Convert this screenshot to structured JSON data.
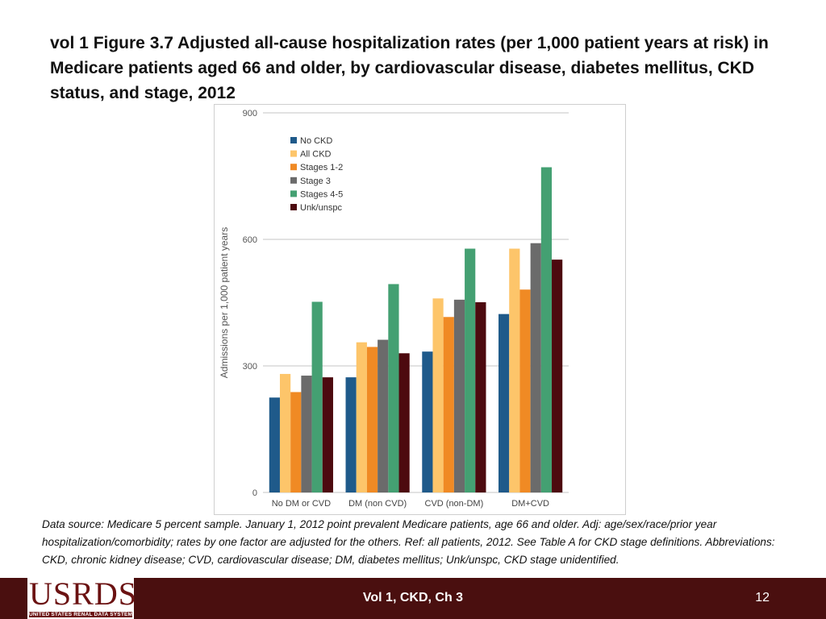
{
  "slide": {
    "title": "vol 1 Figure 3.7  Adjusted all-cause hospitalization rates (per 1,000 patient years at risk) in Medicare patients aged 66 and older, by cardiovascular disease, diabetes mellitus, CKD status, and stage, 2012",
    "footnote": "Data source: Medicare 5 percent sample. January 1, 2012 point prevalent Medicare patients, age 66 and older. Adj: age/sex/race/prior year hospitalization/comorbidity; rates by one factor are adjusted for the others. Ref: all patients, 2012. See Table A for CKD stage definitions. Abbreviations: CKD, chronic kidney disease; CVD, cardiovascular disease; DM, diabetes mellitus; Unk/unspc, CKD stage unidentified.",
    "footer_center": "Vol 1, CKD, Ch 3",
    "page_number": "12",
    "logo_text": "USRDS",
    "logo_subtitle": "UNITED STATES RENAL DATA SYSTEM"
  },
  "chart_data": {
    "type": "bar",
    "title": "",
    "xlabel": "",
    "ylabel": "Admissions per 1,000 patient years",
    "ylim": [
      0,
      900
    ],
    "yticks": [
      0,
      300,
      600,
      900
    ],
    "grid": true,
    "legend_position": "top-left",
    "categories": [
      "No DM or CVD",
      "DM (non CVD)",
      "CVD (non-DM)",
      "DM+CVD"
    ],
    "series": [
      {
        "name": "No CKD",
        "color": "#1f5a8a",
        "values": [
          225,
          273,
          334,
          423
        ]
      },
      {
        "name": "All CKD",
        "color": "#fdc56a",
        "values": [
          281,
          356,
          460,
          578
        ]
      },
      {
        "name": "Stages 1-2",
        "color": "#f08a24",
        "values": [
          238,
          345,
          416,
          481
        ]
      },
      {
        "name": "Stage 3",
        "color": "#6b6b6b",
        "values": [
          277,
          362,
          457,
          591
        ]
      },
      {
        "name": "Stages 4-5",
        "color": "#44a072",
        "values": [
          452,
          494,
          578,
          771
        ]
      },
      {
        "name": "Unk/unspc",
        "color": "#4d0a0f",
        "values": [
          273,
          330,
          451,
          552
        ]
      }
    ]
  }
}
